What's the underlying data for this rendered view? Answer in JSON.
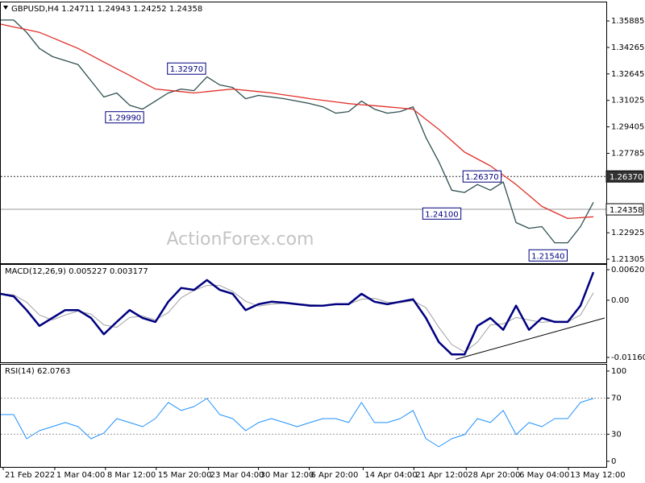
{
  "chart_data": [
    {
      "type": "line",
      "title": "GBPUSD,H4  1.24711 1.24943 1.24252 1.24358",
      "watermark": "ActionForex.com",
      "x": [
        0,
        4,
        8,
        12,
        16,
        20,
        24,
        28,
        32,
        36,
        40,
        44,
        48,
        52,
        56,
        60,
        64,
        68,
        72,
        76,
        80,
        84,
        88,
        92,
        96,
        100,
        104,
        108,
        112,
        116,
        120,
        124,
        128,
        132,
        136,
        140,
        144,
        148,
        152,
        156,
        160,
        164,
        168,
        172,
        176,
        180,
        184
      ],
      "xlim": [
        0,
        188
      ],
      "series": [
        {
          "color": "#2f4f4f",
          "values": [
            1.3594,
            1.3594,
            1.3519,
            1.342,
            1.3371,
            1.3346,
            1.3321,
            1.3222,
            1.3123,
            1.3148,
            1.3073,
            1.3049,
            1.3098,
            1.3148,
            1.3172,
            1.3162,
            1.3247,
            1.3197,
            1.3182,
            1.3113,
            1.3133,
            1.3123,
            1.3113,
            1.3098,
            1.3083,
            1.3063,
            1.3024,
            1.3034,
            1.3098,
            1.3049,
            1.3024,
            1.3034,
            1.3063,
            1.2875,
            1.2727,
            1.2553,
            1.2539,
            1.2588,
            1.2553,
            1.2603,
            1.2355,
            1.232,
            1.233,
            1.2231,
            1.2231,
            1.233,
            1.2479
          ]
        },
        {
          "color": "#e0302a",
          "values": [
            1.3569,
            1.3552,
            1.3536,
            1.3519,
            1.3486,
            1.3453,
            1.342,
            1.3379,
            1.3337,
            1.3296,
            1.3255,
            1.3213,
            1.3172,
            1.3164,
            1.3156,
            1.3148,
            1.3156,
            1.3164,
            1.3172,
            1.3164,
            1.3156,
            1.3148,
            1.3136,
            1.3125,
            1.3113,
            1.3103,
            1.3093,
            1.3083,
            1.3076,
            1.307,
            1.3063,
            1.3056,
            1.3049,
            1.2987,
            1.2925,
            1.2855,
            1.2786,
            1.2744,
            1.2702,
            1.2645,
            1.2588,
            1.2521,
            1.2454,
            1.2417,
            1.238,
            1.2385,
            1.239
          ]
        }
      ],
      "ylim": [
        1.2106,
        1.3702
      ],
      "yticks": [
        1.35885,
        1.34265,
        1.32645,
        1.31025,
        1.29405,
        1.27785,
        1.26165,
        1.24545,
        1.22925,
        1.21305
      ],
      "hlines": [
        {
          "value": 1.2637,
          "label": "1.26370",
          "style": "dotted",
          "color": "#333333",
          "label_fill": "#333333",
          "label_color": "#ffffff"
        },
        {
          "value": 1.24358,
          "label": "1.24358",
          "style": "solid",
          "color": "#999999",
          "label_fill": "#ffffff",
          "label_color": "#000000"
        }
      ],
      "annotations": [
        {
          "x": 51.75,
          "value": 1.3297,
          "label": "1.32970"
        },
        {
          "x": 32.5,
          "value": 1.2999,
          "label": "1.29990"
        },
        {
          "x": 143.5,
          "value": 1.2637,
          "label": "1.26370"
        },
        {
          "x": 131,
          "value": 1.241,
          "label": "1.24100"
        },
        {
          "x": 164,
          "value": 1.2154,
          "label": "1.21540"
        }
      ]
    },
    {
      "type": "line",
      "title": "MACD(12,26,9) 0.005227 0.003177",
      "x": [
        0,
        4,
        8,
        12,
        16,
        20,
        24,
        28,
        32,
        36,
        40,
        44,
        48,
        52,
        56,
        60,
        64,
        68,
        72,
        76,
        80,
        84,
        88,
        92,
        96,
        100,
        104,
        108,
        112,
        116,
        120,
        124,
        128,
        132,
        136,
        140,
        144,
        148,
        152,
        156,
        160,
        164,
        168,
        172,
        176,
        180,
        184
      ],
      "xlim": [
        0,
        188
      ],
      "series": [
        {
          "color": "#a0a0a0",
          "width": 1,
          "values": [
            0.0013,
            0.0011,
            -0.0004,
            -0.003,
            -0.004,
            -0.003,
            -0.0022,
            -0.0028,
            -0.005,
            -0.0055,
            -0.0035,
            -0.0032,
            -0.004,
            -0.0025,
            0.0005,
            0.002,
            0.003,
            0.003,
            0.0018,
            -0.0002,
            -0.0012,
            -0.0008,
            -0.0006,
            -0.0007,
            -0.0009,
            -0.001,
            -0.0009,
            -0.0008,
            0.0002,
            0.0004,
            -0.0004,
            -0.0005,
            -0.0001,
            -0.0015,
            -0.0055,
            -0.009,
            -0.0105,
            -0.0085,
            -0.005,
            -0.0048,
            -0.0035,
            -0.004,
            -0.0045,
            -0.0042,
            -0.0044,
            -0.003,
            0.0015
          ]
        },
        {
          "color": "#000080",
          "width": 2.5,
          "values": [
            0.0013,
            0.0008,
            -0.002,
            -0.0052,
            -0.0036,
            -0.002,
            -0.002,
            -0.0036,
            -0.0069,
            -0.0044,
            -0.002,
            -0.0036,
            -0.0044,
            -0.0003,
            0.0025,
            0.0021,
            0.0041,
            0.0021,
            0.0013,
            -0.002,
            -0.0008,
            -0.0003,
            -0.0005,
            -0.0008,
            -0.0011,
            -0.0011,
            -0.0008,
            -0.0008,
            0.0013,
            -0.0003,
            -0.0008,
            -0.0003,
            0.0002,
            -0.0036,
            -0.0085,
            -0.011,
            -0.011,
            -0.0052,
            -0.0036,
            -0.006,
            -0.0011,
            -0.006,
            -0.0036,
            -0.0044,
            -0.0044,
            -0.0011,
            0.0057
          ]
        }
      ],
      "ylim": [
        -0.01259,
        0.00719
      ],
      "yticks": [
        0.006208,
        {
          "value": 0,
          "label": "0.00"
        },
        -0.011607
      ],
      "trendline": {
        "x": [
          141.25,
          187.5
        ],
        "values": [
          -0.012,
          -0.0036
        ],
        "color": "#000000"
      }
    },
    {
      "type": "line",
      "title": "RSI(14) 62.0763",
      "x": [
        0,
        4,
        8,
        12,
        16,
        20,
        24,
        28,
        32,
        36,
        40,
        44,
        48,
        52,
        56,
        60,
        64,
        68,
        72,
        76,
        80,
        84,
        88,
        92,
        96,
        100,
        104,
        108,
        112,
        116,
        120,
        124,
        128,
        132,
        136,
        140,
        144,
        148,
        152,
        156,
        160,
        164,
        168,
        172,
        176,
        180,
        184
      ],
      "xlim": [
        0,
        188
      ],
      "series": [
        {
          "color": "#1e90ff",
          "width": 1,
          "values": [
            51.8,
            51.8,
            25.0,
            33.9,
            38.4,
            42.9,
            38.4,
            25.0,
            31.3,
            47.3,
            42.9,
            38.4,
            47.3,
            65.2,
            56.3,
            60.7,
            69.6,
            51.8,
            47.3,
            33.9,
            42.9,
            47.3,
            42.9,
            38.4,
            42.9,
            47.3,
            47.3,
            42.9,
            65.2,
            42.9,
            42.9,
            47.3,
            56.3,
            25.0,
            16.1,
            25.0,
            29.5,
            47.3,
            42.9,
            56.3,
            29.5,
            42.9,
            38.4,
            47.3,
            47.3,
            65.2,
            69.6
          ]
        }
      ],
      "ylim": [
        -6.25,
        107.1
      ],
      "yticks": [
        100,
        70,
        30,
        0
      ],
      "levels": [
        70,
        30
      ],
      "xticks": [
        {
          "value": 0.75,
          "label": "21 Feb 2022"
        },
        {
          "value": 16.75,
          "label": "1 Mar 04:00"
        },
        {
          "value": 32.5,
          "label": "8 Mar 12:00"
        },
        {
          "value": 48.25,
          "label": "15 Mar 20:00"
        },
        {
          "value": 64.5,
          "label": "23 Mar 04:00"
        },
        {
          "value": 80,
          "label": "30 Mar 12:00"
        },
        {
          "value": 95.75,
          "label": "6 Apr 20:00"
        },
        {
          "value": 112.5,
          "label": "14 Apr 04:00"
        },
        {
          "value": 128.25,
          "label": "21 Apr 12:00"
        },
        {
          "value": 144.5,
          "label": "28 Apr 20:00"
        },
        {
          "value": 160.5,
          "label": "6 May 04:00"
        },
        {
          "value": 176.25,
          "label": "13 May 12:00"
        }
      ]
    }
  ]
}
